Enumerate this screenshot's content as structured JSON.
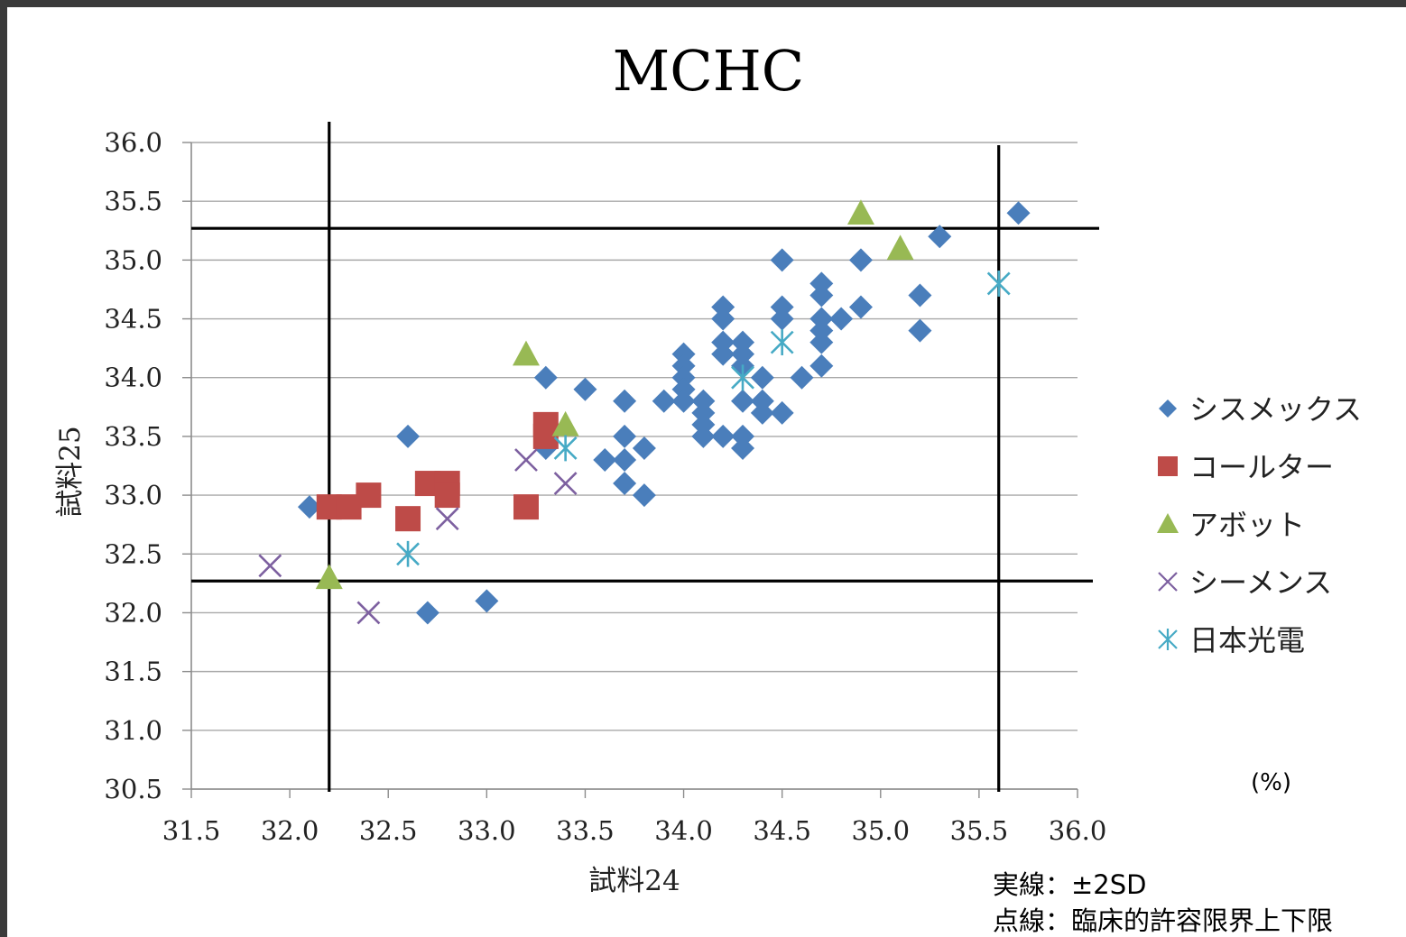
{
  "chart_data": {
    "type": "scatter",
    "title": "MCHC",
    "xlabel": "試料24",
    "ylabel": "試料25",
    "xlim": [
      31.5,
      36.0
    ],
    "ylim": [
      30.5,
      36.0
    ],
    "x_ticks": [
      "31.5",
      "32.0",
      "32.5",
      "33.0",
      "33.5",
      "34.0",
      "34.5",
      "35.0",
      "35.5",
      "36.0"
    ],
    "y_ticks": [
      "30.5",
      "31.0",
      "31.5",
      "32.0",
      "32.5",
      "33.0",
      "33.5",
      "34.0",
      "34.5",
      "35.0",
      "35.5",
      "36.0"
    ],
    "grid": "horizontal",
    "legend_position": "right",
    "unit_label": "(%)",
    "reference_lines": {
      "vertical": [
        32.2,
        35.6
      ],
      "horizontal": [
        32.27,
        35.27
      ]
    },
    "notes": [
      "実線：±2SD",
      "点線：臨床的許容限界上下限"
    ],
    "series": [
      {
        "name": "シスメックス",
        "marker": "diamond",
        "color": "#4a7ebb",
        "points": [
          [
            32.1,
            32.9
          ],
          [
            32.6,
            33.5
          ],
          [
            32.7,
            32.0
          ],
          [
            33.0,
            32.1
          ],
          [
            33.3,
            34.0
          ],
          [
            33.3,
            33.4
          ],
          [
            33.5,
            33.9
          ],
          [
            33.6,
            33.3
          ],
          [
            33.7,
            33.8
          ],
          [
            33.7,
            33.5
          ],
          [
            33.7,
            33.3
          ],
          [
            33.7,
            33.1
          ],
          [
            33.8,
            33.4
          ],
          [
            33.8,
            33.0
          ],
          [
            33.9,
            33.8
          ],
          [
            34.0,
            34.2
          ],
          [
            34.0,
            34.1
          ],
          [
            34.0,
            34.0
          ],
          [
            34.0,
            33.9
          ],
          [
            34.0,
            33.8
          ],
          [
            34.1,
            33.8
          ],
          [
            34.1,
            33.7
          ],
          [
            34.1,
            33.6
          ],
          [
            34.1,
            33.5
          ],
          [
            34.2,
            34.6
          ],
          [
            34.2,
            34.5
          ],
          [
            34.2,
            34.3
          ],
          [
            34.2,
            34.2
          ],
          [
            34.2,
            33.5
          ],
          [
            34.3,
            34.3
          ],
          [
            34.3,
            34.2
          ],
          [
            34.3,
            34.1
          ],
          [
            34.3,
            33.8
          ],
          [
            34.3,
            33.5
          ],
          [
            34.3,
            33.4
          ],
          [
            34.4,
            34.0
          ],
          [
            34.4,
            33.8
          ],
          [
            34.4,
            33.7
          ],
          [
            34.5,
            35.0
          ],
          [
            34.5,
            34.6
          ],
          [
            34.5,
            34.5
          ],
          [
            34.5,
            33.7
          ],
          [
            34.6,
            34.0
          ],
          [
            34.7,
            34.8
          ],
          [
            34.7,
            34.7
          ],
          [
            34.7,
            34.5
          ],
          [
            34.7,
            34.4
          ],
          [
            34.7,
            34.3
          ],
          [
            34.7,
            34.1
          ],
          [
            34.8,
            34.5
          ],
          [
            34.9,
            35.0
          ],
          [
            34.9,
            34.6
          ],
          [
            35.2,
            34.7
          ],
          [
            35.2,
            34.4
          ],
          [
            35.3,
            35.2
          ],
          [
            35.7,
            35.4
          ]
        ]
      },
      {
        "name": "コールター",
        "marker": "square",
        "color": "#be4b48",
        "points": [
          [
            32.2,
            32.9
          ],
          [
            32.3,
            32.9
          ],
          [
            32.4,
            33.0
          ],
          [
            32.6,
            32.8
          ],
          [
            32.7,
            33.1
          ],
          [
            32.8,
            33.1
          ],
          [
            32.8,
            33.0
          ],
          [
            33.2,
            32.9
          ],
          [
            33.3,
            33.6
          ],
          [
            33.3,
            33.5
          ]
        ]
      },
      {
        "name": "アボット",
        "marker": "triangle",
        "color": "#98b954",
        "points": [
          [
            32.2,
            32.3
          ],
          [
            33.2,
            34.2
          ],
          [
            33.4,
            33.6
          ],
          [
            34.9,
            35.4
          ],
          [
            35.1,
            35.1
          ]
        ]
      },
      {
        "name": "シーメンス",
        "marker": "x",
        "color": "#7d60a0",
        "points": [
          [
            31.9,
            32.4
          ],
          [
            32.4,
            32.0
          ],
          [
            32.8,
            32.8
          ],
          [
            33.2,
            33.3
          ],
          [
            33.4,
            33.1
          ]
        ]
      },
      {
        "name": "日本光電",
        "marker": "star",
        "color": "#46aac5",
        "points": [
          [
            32.6,
            32.5
          ],
          [
            33.4,
            33.4
          ],
          [
            34.3,
            34.0
          ],
          [
            34.5,
            34.3
          ],
          [
            35.6,
            34.8
          ]
        ]
      }
    ]
  }
}
